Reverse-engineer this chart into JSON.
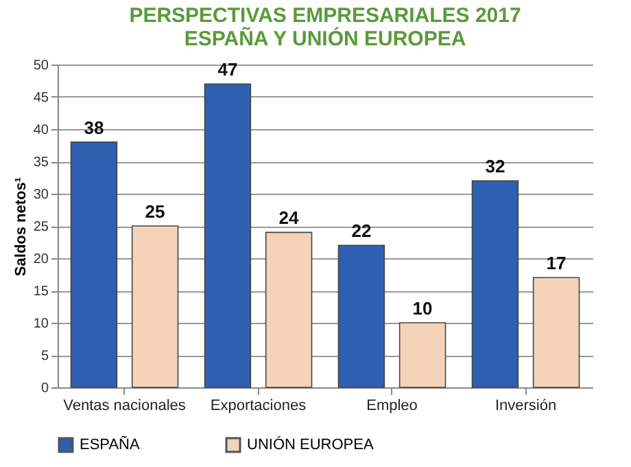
{
  "chart_data": {
    "type": "bar",
    "title": "PERSPECTIVAS EMPRESARIALES 2017",
    "subtitle": "ESPAÑA Y UNIÓN EUROPEA",
    "ylabel": "Saldos netos¹",
    "categories": [
      "Ventas nacionales",
      "Exportaciones",
      "Empleo",
      "Inversión"
    ],
    "series": [
      {
        "name": "ESPAÑA",
        "color": "#2e5fb0",
        "values": [
          38,
          47,
          22,
          32
        ]
      },
      {
        "name": "UNIÓN EUROPEA",
        "color": "#f5d3b8",
        "values": [
          25,
          24,
          10,
          17
        ]
      }
    ],
    "ylim": [
      0,
      50
    ],
    "yticks": [
      0,
      5,
      10,
      15,
      20,
      25,
      30,
      35,
      40,
      45,
      50
    ],
    "grid": "y",
    "legend": "bottom left",
    "data_labels": true
  }
}
